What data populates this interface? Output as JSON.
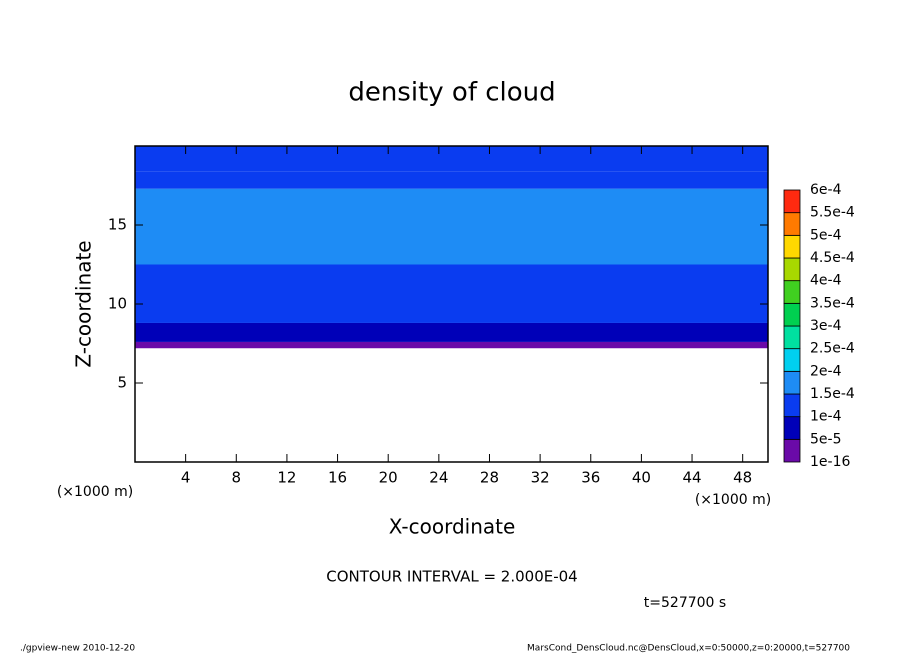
{
  "chart_data": {
    "type": "contour",
    "title": "density of cloud",
    "x_label": "X-coordinate",
    "y_label": "Z-coordinate",
    "x_unit": "(×1000 m)",
    "annotations": [
      "CONTOUR INTERVAL = 2.000E-04",
      "t=527700 s"
    ],
    "footer_left": "./gpview-new   2010-12-20",
    "footer_right": "MarsCond_DensCloud.nc@DensCloud,x=0:50000,z=0:20000,t=527700",
    "xlim": [
      0,
      50
    ],
    "xticks": [
      4,
      8,
      12,
      16,
      20,
      24,
      28,
      32,
      36,
      40,
      44,
      48
    ],
    "ylim": [
      0,
      20
    ],
    "yticks": [
      5,
      10,
      15
    ],
    "z": [
      7.2,
      7.6,
      8.8,
      10,
      12.5,
      17.3,
      18.4,
      20
    ],
    "values": [
      2e-05,
      7e-05,
      0.00012,
      0.00013,
      0.00016,
      0.00014,
      0.00012
    ],
    "levels": [
      {
        "value": 1e-16,
        "label": "1e-16"
      },
      {
        "value": 5e-05,
        "label": "5e-5"
      },
      {
        "value": 0.0001,
        "label": "1e-4"
      },
      {
        "value": 0.00015,
        "label": "1.5e-4"
      },
      {
        "value": 0.0002,
        "label": "2e-4"
      },
      {
        "value": 0.00025,
        "label": "2.5e-4"
      },
      {
        "value": 0.0003,
        "label": "3e-4"
      },
      {
        "value": 0.00035,
        "label": "3.5e-4"
      },
      {
        "value": 0.0004,
        "label": "4e-4"
      },
      {
        "value": 0.00045,
        "label": "4.5e-4"
      },
      {
        "value": 0.0005,
        "label": "5e-4"
      },
      {
        "value": 0.00055,
        "label": "5.5e-4"
      },
      {
        "value": 0.0006,
        "label": "6e-4"
      }
    ],
    "colors": [
      "#6a0aa8",
      "#0000b8",
      "#0a3cf0",
      "#1e8cf5",
      "#00d0f0",
      "#00e0a0",
      "#00d050",
      "#40d020",
      "#a8d800",
      "#ffd800",
      "#ff7a00",
      "#ff2a10"
    ]
  }
}
